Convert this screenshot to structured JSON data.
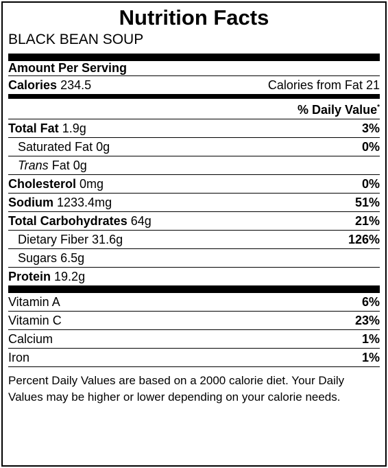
{
  "title": "Nutrition Facts",
  "food_name": "BLACK BEAN SOUP",
  "amount_per_serving": "Amount Per Serving",
  "calories": {
    "label": "Calories",
    "value": "234.5",
    "from_fat_label": "Calories from Fat",
    "from_fat_value": "21"
  },
  "daily_value_header": "% Daily Value",
  "daily_value_marker": "*",
  "nutrients": {
    "total_fat": {
      "label": "Total Fat",
      "amount": "1.9g",
      "dv": "3%"
    },
    "saturated_fat": {
      "label": "Saturated Fat",
      "amount": "0g",
      "dv": "0%"
    },
    "trans_fat": {
      "label_italic": "Trans",
      "label": "Fat",
      "amount": "0g"
    },
    "cholesterol": {
      "label": "Cholesterol",
      "amount": "0mg",
      "dv": "0%"
    },
    "sodium": {
      "label": "Sodium",
      "amount": "1233.4mg",
      "dv": "51%"
    },
    "total_carbohydrates": {
      "label": "Total Carbohydrates",
      "amount": "64g",
      "dv": "21%"
    },
    "dietary_fiber": {
      "label": "Dietary Fiber",
      "amount": "31.6g",
      "dv": "126%"
    },
    "sugars": {
      "label": "Sugars",
      "amount": "6.5g"
    },
    "protein": {
      "label": "Protein",
      "amount": "19.2g"
    }
  },
  "vitamins": [
    {
      "label": "Vitamin A",
      "dv": "6%"
    },
    {
      "label": "Vitamin C",
      "dv": "23%"
    },
    {
      "label": "Calcium",
      "dv": "1%"
    },
    {
      "label": "Iron",
      "dv": "1%"
    }
  ],
  "footnote": "Percent Daily Values are based on a 2000 calorie diet. Your Daily Values may be higher or lower depending on your calorie needs."
}
